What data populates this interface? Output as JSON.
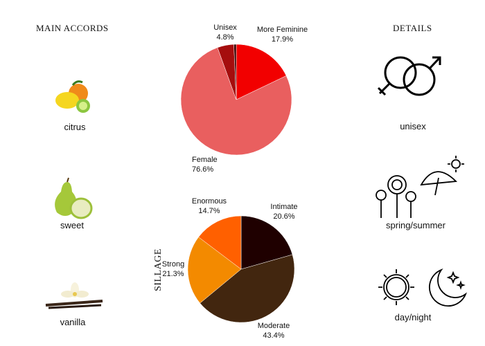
{
  "main_accords": {
    "title": "MAIN ACCORDS",
    "items": [
      {
        "label": "citrus",
        "icon": "citrus-fruit-icon"
      },
      {
        "label": "sweet",
        "icon": "pear-icon"
      },
      {
        "label": "vanilla",
        "icon": "vanilla-flower-icon"
      }
    ]
  },
  "details": {
    "title": "DETAILS",
    "items": [
      {
        "label": "unisex",
        "icon": "gender-symbols-icon"
      },
      {
        "label": "spring/summer",
        "icon": "flowers-umbrella-sun-icon"
      },
      {
        "label": "day/night",
        "icon": "sun-moon-icon"
      }
    ]
  },
  "sillage_label": "SILLAGE",
  "chart_data": [
    {
      "type": "pie",
      "start": "top",
      "direction": "clockwise",
      "slices": [
        {
          "name": "More Feminine",
          "value": 17.9,
          "label": "17.9%",
          "color": "#f20000"
        },
        {
          "name": "Female",
          "value": 76.6,
          "label": "76.6%",
          "color": "#e95f5f"
        },
        {
          "name": "Unisex",
          "value": 4.8,
          "label": "4.8%",
          "color": "#a50d0d"
        },
        {
          "name": "",
          "value": 0.7,
          "label": "",
          "color": "#3a0000"
        }
      ]
    },
    {
      "type": "pie",
      "start": "top",
      "direction": "clockwise",
      "slices": [
        {
          "name": "Intimate",
          "value": 20.6,
          "label": "20.6%",
          "color": "#1f0000"
        },
        {
          "name": "Moderate",
          "value": 43.4,
          "label": "43.4%",
          "color": "#42260f"
        },
        {
          "name": "Strong",
          "value": 21.3,
          "label": "21.3%",
          "color": "#f38a00"
        },
        {
          "name": "Enormous",
          "value": 14.7,
          "label": "14.7%",
          "color": "#ff6000"
        }
      ]
    }
  ]
}
